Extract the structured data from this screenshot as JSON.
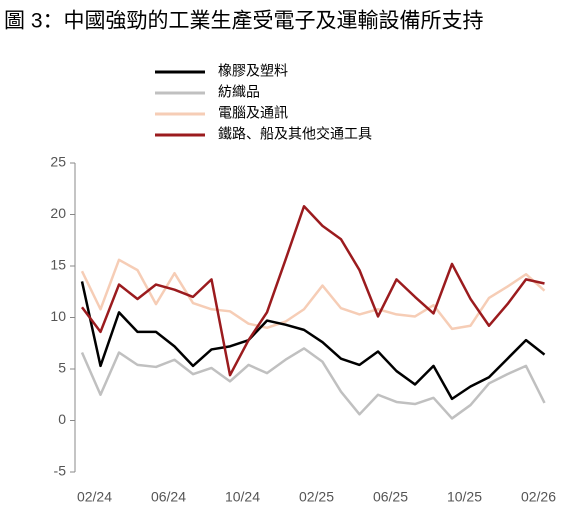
{
  "chart_data": {
    "type": "line",
    "title": "圖 3：中國強勁的工業生產受電子及運輸設備所支持",
    "categories": [
      null,
      "02/24",
      null,
      null,
      null,
      "06/24",
      null,
      null,
      null,
      "10/24",
      null,
      null,
      null,
      "02/25",
      null,
      null,
      null,
      "06/25",
      null,
      null,
      null,
      "10/25",
      null,
      null,
      null,
      "02/26"
    ],
    "series": [
      {
        "name": "橡膠及塑料",
        "color": "#000000",
        "values": [
          13.5,
          5.3,
          10.5,
          8.6,
          8.6,
          7.2,
          5.3,
          6.9,
          7.2,
          7.8,
          9.7,
          9.3,
          8.8,
          7.6,
          6.0,
          5.4,
          6.7,
          4.8,
          3.5,
          5.3,
          2.1,
          3.3,
          4.2,
          6.0,
          7.8,
          6.4
        ]
      },
      {
        "name": "紡織品",
        "color": "#c0c0c0",
        "values": [
          6.6,
          2.5,
          6.6,
          5.4,
          5.2,
          5.9,
          4.5,
          5.1,
          3.8,
          5.4,
          4.6,
          5.9,
          7.0,
          5.7,
          2.8,
          0.6,
          2.5,
          1.8,
          1.6,
          2.2,
          0.2,
          1.5,
          3.6,
          4.5,
          5.3,
          1.7
        ]
      },
      {
        "name": "電腦及通訊",
        "color": "#f6cdb6",
        "values": [
          14.5,
          10.8,
          15.6,
          14.6,
          11.3,
          14.3,
          11.4,
          10.8,
          10.6,
          9.4,
          9.0,
          9.6,
          10.8,
          13.1,
          10.9,
          10.3,
          10.8,
          10.3,
          10.1,
          11.2,
          8.9,
          9.2,
          11.9,
          13.0,
          14.2,
          12.6
        ]
      },
      {
        "name": "鐵路、船及其他交通工具",
        "color": "#9b1b1e",
        "values": [
          11.0,
          8.6,
          13.2,
          11.8,
          13.2,
          12.7,
          12.0,
          13.7,
          4.4,
          7.8,
          10.5,
          15.6,
          20.8,
          18.9,
          17.6,
          14.6,
          10.1,
          13.7,
          12.0,
          10.4,
          15.2,
          11.8,
          9.2,
          11.3,
          13.7,
          13.3
        ]
      }
    ],
    "ylim": [
      -5,
      25
    ],
    "yticks": [
      -5,
      0,
      5,
      10,
      15,
      20,
      25
    ]
  }
}
